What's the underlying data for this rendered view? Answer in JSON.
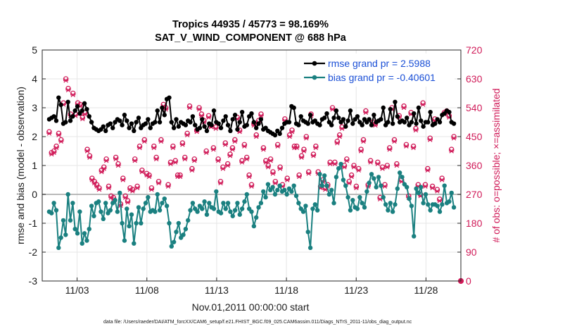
{
  "chart_data": {
    "type": "line",
    "title_line1": "Tropics 44935 / 45773 = 98.169%",
    "title_line2": "SAT_V_WIND_COMPONENT @ 688 hPa",
    "xlabel": "Nov.01,2011 00:00:00 start",
    "ylabel_left": "rmse and bias (model - observation)",
    "ylabel_right": "# of obs: o=possible; ×=assimilated",
    "footnote": "data file: /Users/raeder/DAI/ATM_forcXX/CAM6_setup/f.e21.FHIST_BGC.f09_025.CAM6assim.011/Diags_NTrS_2011-11/obs_diag_output.nc",
    "xlim": [
      0.5,
      30.5
    ],
    "ylim_left": [
      -3,
      5
    ],
    "ylim_right": [
      0,
      720
    ],
    "x_ticks": [
      {
        "x": 3,
        "label": "11/03"
      },
      {
        "x": 8,
        "label": "11/08"
      },
      {
        "x": 13,
        "label": "11/13"
      },
      {
        "x": 18,
        "label": "11/18"
      },
      {
        "x": 23,
        "label": "11/23"
      },
      {
        "x": 28,
        "label": "11/28"
      }
    ],
    "y_left_ticks": [
      "-3",
      "-2",
      "-1",
      "0",
      "1",
      "2",
      "3",
      "4",
      "5"
    ],
    "y_right_ticks": [
      "0",
      "90",
      "180",
      "270",
      "360",
      "450",
      "540",
      "630",
      "720"
    ],
    "colors": {
      "rmse": "#000000",
      "bias": "#1a8080",
      "obs": "#d01a58",
      "zero_line": "#b0b0b0",
      "grid": "#e6e6e6",
      "legend_text": "#1a4fd6"
    },
    "series": [
      {
        "name": "rmse grand pr = 2.5988",
        "axis": "left",
        "values": [
          2.6,
          2.65,
          2.7,
          2.55,
          3.35,
          3.1,
          2.45,
          2.5,
          3.2,
          2.55,
          2.7,
          2.9,
          3.05,
          2.8,
          2.9,
          3.15,
          2.95,
          2.7,
          2.5,
          2.3,
          2.25,
          2.2,
          2.25,
          2.35,
          2.2,
          2.4,
          2.45,
          2.3,
          2.5,
          2.6,
          2.55,
          2.4,
          2.75,
          2.55,
          2.3,
          2.45,
          2.2,
          2.5,
          2.65,
          2.3,
          2.4,
          2.45,
          2.6,
          2.3,
          2.45,
          2.5,
          2.9,
          2.5,
          3.0,
          2.75,
          3.3,
          3.35,
          2.5,
          2.3,
          2.6,
          2.35,
          2.5,
          2.45,
          2.4,
          2.55,
          2.5,
          2.7,
          2.4,
          2.25,
          2.3,
          2.6,
          2.35,
          2.2,
          2.45,
          2.4,
          2.9,
          2.5,
          2.45,
          2.3,
          2.55,
          2.7,
          2.4,
          2.2,
          2.6,
          2.75,
          2.25,
          2.5,
          2.85,
          2.35,
          2.4,
          2.7,
          2.8,
          2.5,
          2.3,
          2.45,
          2.6,
          2.25,
          2.3,
          2.2,
          2.15,
          2.1,
          2.05,
          2.2,
          2.1,
          2.3,
          2.45,
          2.5,
          2.5,
          3.05,
          3.0,
          2.45,
          2.4,
          2.7,
          2.55,
          2.5,
          2.45,
          2.75,
          2.5,
          2.55,
          2.45,
          2.4,
          2.6,
          2.65,
          2.8,
          2.5,
          2.4,
          2.65,
          2.9,
          2.65,
          2.5,
          2.6,
          2.35,
          2.55,
          2.9,
          2.45,
          2.6,
          2.7,
          2.5,
          2.4,
          2.6,
          2.5,
          2.6,
          2.4,
          2.75,
          2.5,
          2.55,
          2.6,
          3.0,
          2.4,
          2.5,
          2.95,
          2.45,
          3.2,
          2.7,
          2.5,
          2.55,
          2.5,
          2.65,
          2.4,
          2.5,
          2.8,
          2.45,
          3.0,
          2.55,
          2.35,
          2.5,
          2.5,
          2.85,
          2.4,
          2.45,
          2.6,
          2.5,
          2.75,
          2.8,
          2.9,
          2.85,
          2.5,
          2.45
        ]
      },
      {
        "name": "bias grand pr = -0.40601",
        "axis": "left",
        "values": [
          -0.6,
          -0.65,
          -0.3,
          -0.55,
          -1.85,
          -1.5,
          -0.9,
          -1.4,
          0.0,
          -0.9,
          -0.3,
          -1.2,
          -1.35,
          -0.6,
          -1.7,
          -1.35,
          -1.6,
          -1.2,
          -0.4,
          -0.75,
          -0.3,
          -0.25,
          -0.6,
          -0.85,
          -0.3,
          -0.65,
          -0.55,
          -0.3,
          -0.2,
          -0.6,
          0.05,
          -1.0,
          -1.6,
          -0.5,
          -1.1,
          -0.7,
          -1.7,
          -1.0,
          -0.45,
          -1.0,
          -0.5,
          -0.3,
          -0.1,
          -0.6,
          -0.55,
          -0.6,
          0.0,
          -0.55,
          -0.3,
          -0.15,
          -0.4,
          -1.0,
          -1.8,
          -1.65,
          -1.3,
          -1.0,
          -1.5,
          -1.4,
          -1.2,
          -0.9,
          -0.55,
          -0.3,
          -0.5,
          -0.6,
          -0.4,
          -0.5,
          -0.25,
          -0.7,
          -0.3,
          -0.45,
          -0.5,
          0.1,
          -0.6,
          -0.65,
          -0.3,
          -0.5,
          -0.3,
          -0.6,
          -0.75,
          -0.55,
          -0.3,
          -0.7,
          -0.5,
          -0.25,
          0.0,
          -0.5,
          -0.6,
          -1.1,
          -0.8,
          -0.45,
          -0.3,
          0.1,
          -0.1,
          0.35,
          0.15,
          0.25,
          0.0,
          0.15,
          0.3,
          0.1,
          0.15,
          0.0,
          0.2,
          0.1,
          0.3,
          -0.05,
          -0.3,
          -0.5,
          -0.6,
          -0.4,
          -1.3,
          -1.85,
          -0.5,
          -0.35,
          -0.55,
          0.7,
          0.3,
          0.65,
          0.3,
          0.0,
          0.15,
          -0.3,
          0.6,
          0.9,
          1.05,
          0.5,
          0.3,
          -0.1,
          -0.55,
          -0.2,
          -0.45,
          -0.5,
          -0.1,
          -0.3,
          -0.45,
          0.1,
          0.4,
          0.7,
          0.55,
          0.25,
          0.6,
          0.3,
          -0.1,
          -0.35,
          -0.55,
          -0.3,
          -0.6,
          -0.35,
          0.2,
          0.75,
          0.6,
          0.35,
          0.25,
          -0.15,
          -0.4,
          -1.45,
          0.2,
          0.05,
          0.25,
          -0.3,
          0.0,
          -0.35,
          -0.55,
          -0.35,
          -0.35,
          -0.4,
          -0.6,
          -0.35,
          0.3,
          -0.3,
          -0.25,
          0.05,
          -0.45
        ]
      },
      {
        "name": "obs possible",
        "axis": "right",
        "style": "circle",
        "values": [
          465,
          400,
          405,
          420,
          460,
          440,
          555,
          630,
          600,
          520,
          585,
          520,
          555,
          550,
          510,
          525,
          410,
          390,
          320,
          310,
          300,
          290,
          345,
          355,
          380,
          295,
          265,
          260,
          385,
          365,
          240,
          320,
          265,
          250,
          290,
          285,
          380,
          295,
          420,
          345,
          440,
          335,
          330,
          290,
          420,
          385,
          310,
          440,
          550,
          540,
          300,
          370,
          420,
          375,
          330,
          330,
          430,
          385,
          460,
          545,
          350,
          380,
          470,
          540,
          520,
          500,
          405,
          515,
          485,
          415,
          480,
          380,
          310,
          355,
          430,
          365,
          395,
          415,
          440,
          510,
          470,
          375,
          425,
          385,
          330,
          300,
          490,
          455,
          500,
          520,
          415,
          375,
          360,
          380,
          340,
          310,
          425,
          355,
          300,
          505,
          320,
          455,
          470,
          420,
          420,
          330,
          390,
          410,
          450,
          340,
          520,
          395,
          420,
          340,
          295,
          315,
          290,
          300,
          370,
          540,
          370,
          435,
          455,
          480,
          360,
          380,
          310,
          330,
          360,
          295,
          350,
          410,
          440,
          530,
          300,
          375,
          495,
          490,
          370,
          260,
          355,
          300,
          360,
          415,
          540,
          440,
          365,
          515,
          315,
          545,
          425,
          265,
          525,
          420,
          475,
          300,
          270,
          555,
          300,
          350,
          445,
          295,
          505,
          285,
          255,
          320,
          525,
          530,
          515,
          410,
          450
        ]
      },
      {
        "name": "obs assimilated",
        "axis": "right",
        "style": "x",
        "values": [
          460,
          395,
          400,
          415,
          455,
          435,
          550,
          625,
          595,
          515,
          580,
          515,
          550,
          545,
          505,
          520,
          405,
          385,
          315,
          305,
          295,
          285,
          340,
          350,
          375,
          290,
          260,
          255,
          380,
          360,
          235,
          315,
          260,
          245,
          285,
          280,
          375,
          290,
          415,
          340,
          435,
          330,
          325,
          285,
          415,
          380,
          305,
          435,
          545,
          535,
          295,
          365,
          415,
          370,
          325,
          325,
          425,
          380,
          455,
          540,
          345,
          375,
          465,
          535,
          515,
          495,
          400,
          510,
          480,
          410,
          475,
          375,
          305,
          350,
          425,
          360,
          390,
          410,
          435,
          505,
          465,
          370,
          420,
          380,
          325,
          295,
          485,
          450,
          495,
          515,
          410,
          370,
          355,
          375,
          335,
          305,
          420,
          350,
          295,
          500,
          315,
          450,
          465,
          415,
          415,
          325,
          385,
          405,
          445,
          335,
          515,
          390,
          415,
          335,
          290,
          310,
          285,
          295,
          365,
          535,
          365,
          430,
          450,
          475,
          355,
          375,
          305,
          325,
          355,
          290,
          345,
          405,
          435,
          525,
          295,
          370,
          490,
          485,
          365,
          255,
          350,
          295,
          355,
          410,
          535,
          435,
          360,
          510,
          310,
          540,
          420,
          260,
          520,
          415,
          470,
          295,
          265,
          550,
          295,
          345,
          440,
          290,
          500,
          280,
          250,
          315,
          520,
          525,
          510,
          405,
          445
        ]
      }
    ],
    "obs_end_marker": {
      "x": 30.5,
      "value": 0
    }
  }
}
